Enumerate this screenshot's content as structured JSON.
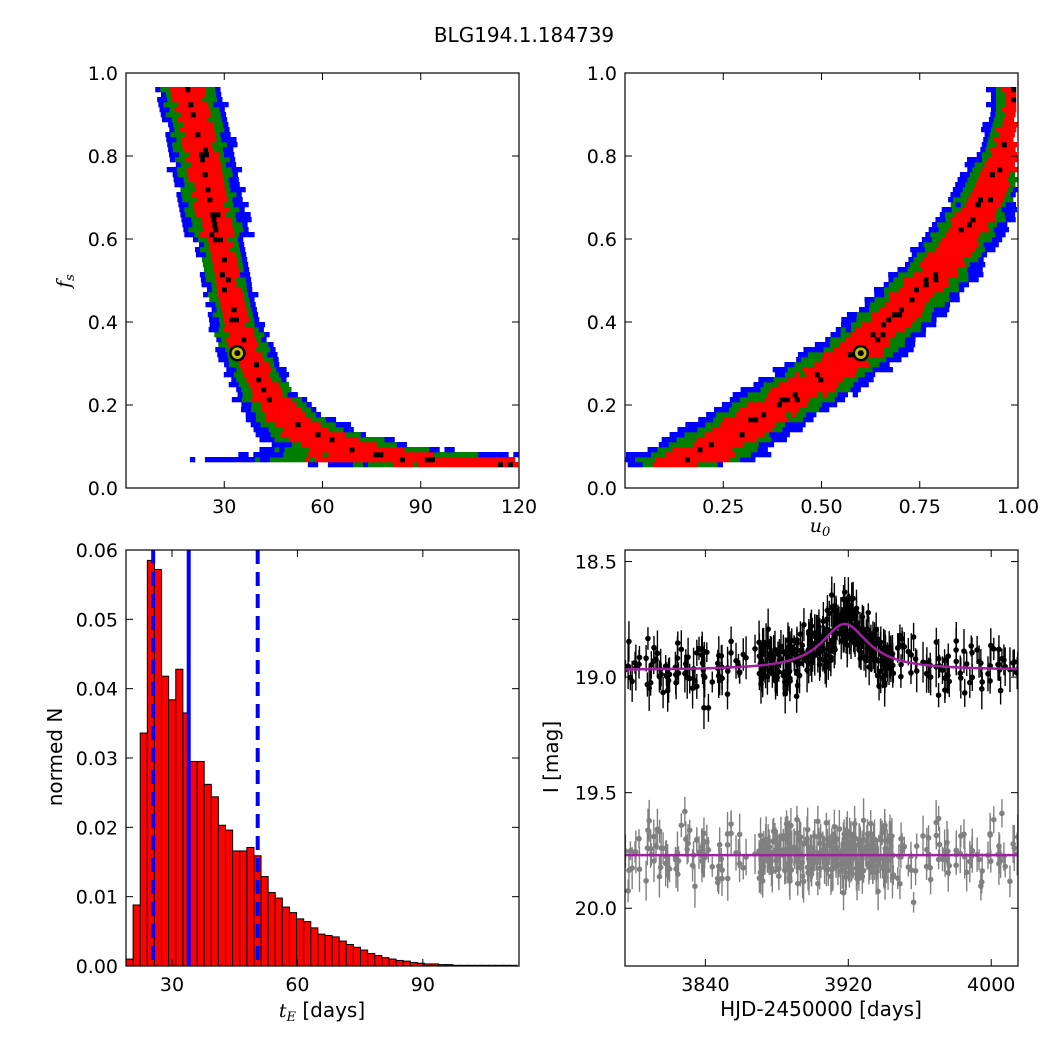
{
  "figure": {
    "title": "BLG194.1.184739"
  },
  "chart_data": [
    {
      "panel": "top-left",
      "type": "heatmap",
      "xlim": [
        0,
        120
      ],
      "ylim": [
        0,
        1.0
      ],
      "xticks": [
        "30",
        "60",
        "90",
        "120"
      ],
      "yticks": [
        "0.0",
        "0.2",
        "0.4",
        "0.6",
        "0.8",
        "1.0"
      ],
      "xlabel": "",
      "ylabel": "f_s",
      "ylabel_main": "f",
      "ylabel_sub": "s",
      "colors": {
        "level1": "#0000ff",
        "level2": "#007f00",
        "level3": "#ff0000",
        "peak": "#000000",
        "marker_fill": "#bfbf00"
      },
      "ridge": [
        [
          19,
          0.95
        ],
        [
          22,
          0.85
        ],
        [
          25,
          0.72
        ],
        [
          28,
          0.6
        ],
        [
          31,
          0.48
        ],
        [
          34,
          0.38
        ],
        [
          38,
          0.3
        ],
        [
          43,
          0.22
        ],
        [
          50,
          0.16
        ],
        [
          58,
          0.12
        ],
        [
          70,
          0.085
        ],
        [
          85,
          0.065
        ],
        [
          100,
          0.055
        ],
        [
          113,
          0.05
        ]
      ],
      "best_fit": {
        "x": 34,
        "y": 0.325
      }
    },
    {
      "panel": "top-right",
      "type": "heatmap",
      "xlim": [
        0.0,
        1.0
      ],
      "ylim": [
        0,
        1.0
      ],
      "xticks": [
        "0.25",
        "0.50",
        "0.75",
        "1.00"
      ],
      "yticks": [
        "0.0",
        "0.2",
        "0.4",
        "0.6",
        "0.8",
        "1.0"
      ],
      "xlabel": "u_0",
      "xlabel_main": "u",
      "xlabel_sub": "0",
      "ylabel": "",
      "ridge": [
        [
          0.13,
          0.05
        ],
        [
          0.2,
          0.08
        ],
        [
          0.3,
          0.14
        ],
        [
          0.4,
          0.2
        ],
        [
          0.5,
          0.26
        ],
        [
          0.6,
          0.33
        ],
        [
          0.7,
          0.42
        ],
        [
          0.8,
          0.52
        ],
        [
          0.9,
          0.66
        ],
        [
          0.97,
          0.8
        ],
        [
          1.0,
          0.9
        ]
      ],
      "best_fit": {
        "x": 0.6,
        "y": 0.325
      }
    },
    {
      "panel": "bottom-left",
      "type": "bar",
      "xlim": [
        19,
        113
      ],
      "ylim": [
        0,
        0.06
      ],
      "xticks": [
        "30",
        "60",
        "90"
      ],
      "yticks": [
        "0.00",
        "0.01",
        "0.02",
        "0.03",
        "0.04",
        "0.05",
        "0.06"
      ],
      "xlabel_main": "t",
      "xlabel_sub": "E",
      "xlabel_rest": " [days]",
      "ylabel": "normed N",
      "bin_start": 19,
      "bin_width": 1.7,
      "values": [
        0.001,
        0.0088,
        0.0336,
        0.0585,
        0.0572,
        0.0418,
        0.0384,
        0.0428,
        0.0365,
        0.0295,
        0.0295,
        0.0262,
        0.0244,
        0.0203,
        0.0196,
        0.0166,
        0.0166,
        0.0171,
        0.0159,
        0.0129,
        0.0106,
        0.0098,
        0.0085,
        0.0077,
        0.0068,
        0.0064,
        0.0055,
        0.0046,
        0.0044,
        0.0042,
        0.0036,
        0.0031,
        0.0027,
        0.0023,
        0.0018,
        0.0015,
        0.0012,
        0.001,
        0.0008,
        0.0007,
        0.0005,
        0.0004,
        0.0003,
        0.0003,
        0.0002,
        0.0002,
        0.0001,
        0.0001,
        0.0001,
        0.0001,
        0.0001,
        0.0001,
        0.0001,
        0.0001,
        0.0001
      ],
      "median_line": 34,
      "interval_lines": [
        25.5,
        50.5
      ],
      "bar_color": "#ff0000",
      "line_color": "#0000ff"
    },
    {
      "panel": "bottom-right",
      "type": "scatter",
      "xlim": [
        3795,
        4015
      ],
      "ylim": [
        20.25,
        18.45
      ],
      "xticks": [
        "3840",
        "3920",
        "4000"
      ],
      "yticks": [
        "18.5",
        "19.0",
        "19.5",
        "20.0"
      ],
      "xlabel": "HJD-2450000 [days]",
      "ylabel": "I [mag]",
      "series": [
        {
          "baseline": 18.97,
          "peak": 18.77,
          "t0": 3918,
          "width": 16,
          "color": "#000000"
        },
        {
          "baseline": 19.77,
          "color": "#808080"
        }
      ],
      "model_color": "#a020a0"
    }
  ]
}
